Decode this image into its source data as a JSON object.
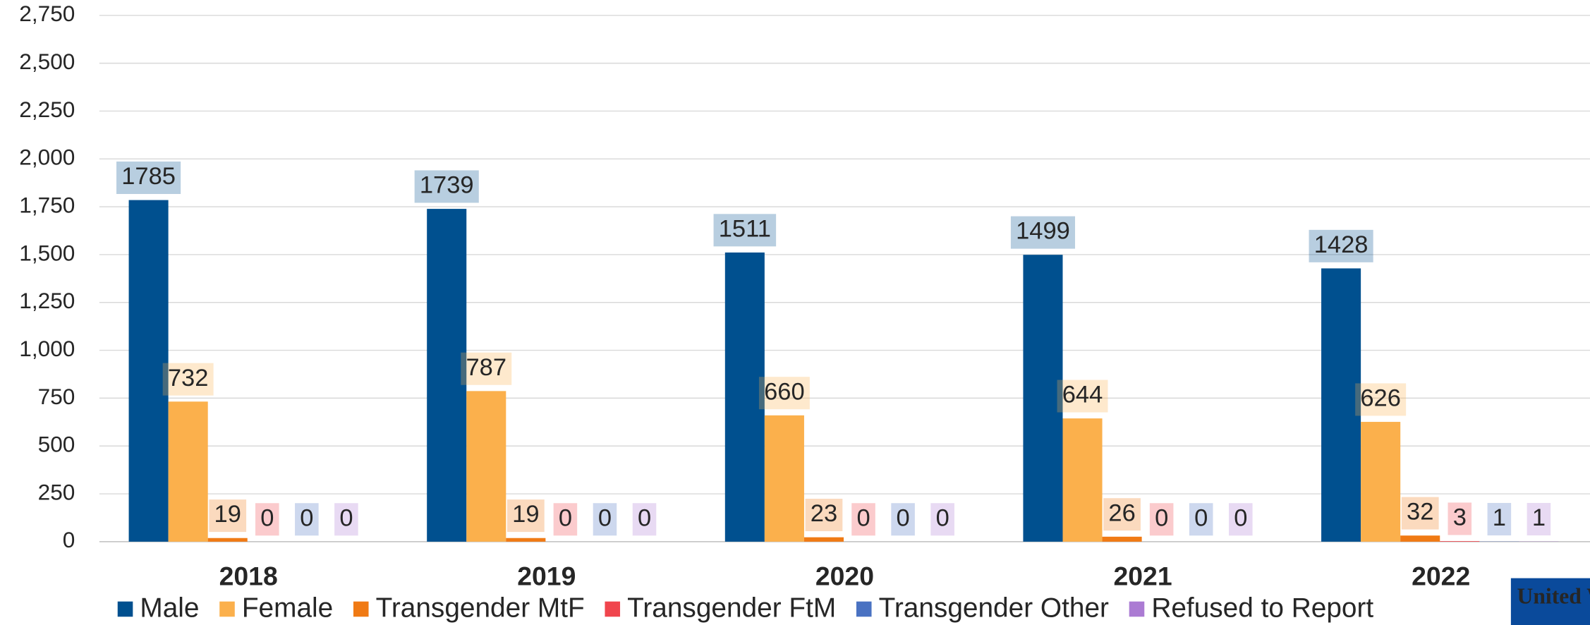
{
  "chart_data": {
    "type": "bar",
    "categories": [
      "2018",
      "2019",
      "2020",
      "2021",
      "2022"
    ],
    "series": [
      {
        "name": "Male",
        "color": "#00508f",
        "values": [
          1785,
          1739,
          1511,
          1499,
          1428
        ]
      },
      {
        "name": "Female",
        "color": "#fbb04c",
        "values": [
          732,
          787,
          660,
          644,
          626
        ]
      },
      {
        "name": "Transgender MtF",
        "color": "#f07a14",
        "values": [
          19,
          19,
          23,
          26,
          32
        ]
      },
      {
        "name": "Transgender FtM",
        "color": "#f0454d",
        "values": [
          0,
          0,
          0,
          0,
          3
        ]
      },
      {
        "name": "Transgender Other",
        "color": "#4a72c2",
        "values": [
          0,
          0,
          0,
          0,
          1
        ]
      },
      {
        "name": "Refused to Report",
        "color": "#ab7bd3",
        "values": [
          0,
          0,
          0,
          0,
          1
        ]
      }
    ],
    "ylim": [
      0,
      2750
    ],
    "yticks": [
      0,
      250,
      500,
      750,
      {
        "value": 1000,
        "label": "1,000"
      },
      {
        "value": 1250,
        "label": "1,250"
      },
      {
        "value": 1500,
        "label": "1,500"
      },
      {
        "value": 1750,
        "label": "1,750"
      },
      {
        "value": 2000,
        "label": "2,000"
      },
      {
        "value": 2250,
        "label": "2,250"
      },
      {
        "value": 2500,
        "label": "2,500"
      },
      {
        "value": 2750,
        "label": "2,750"
      }
    ],
    "grid": true,
    "legend": "bottom",
    "logo": "United Way"
  }
}
